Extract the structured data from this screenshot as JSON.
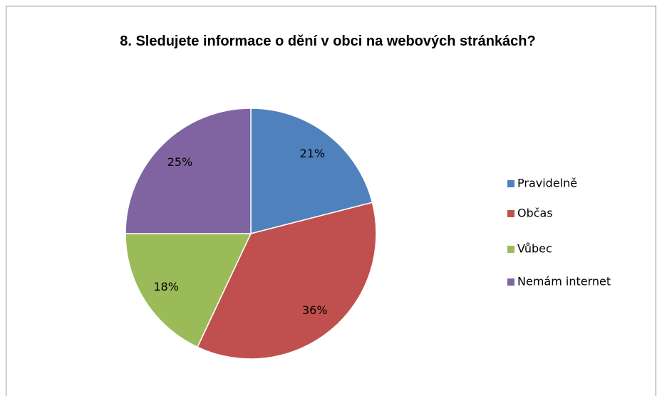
{
  "chart_data": {
    "type": "pie",
    "title": "8. Sledujete informace o dění v obci na webových stránkách?",
    "categories": [
      "Pravidelně",
      "Občas",
      "Vůbec",
      "Nemám internet"
    ],
    "values": [
      21,
      36,
      18,
      25
    ],
    "value_labels": [
      "21%",
      "36%",
      "18%",
      "25%"
    ],
    "colors": [
      "#4f81bd",
      "#c0504d",
      "#9bbb59",
      "#8064a2"
    ],
    "legend": "right"
  }
}
